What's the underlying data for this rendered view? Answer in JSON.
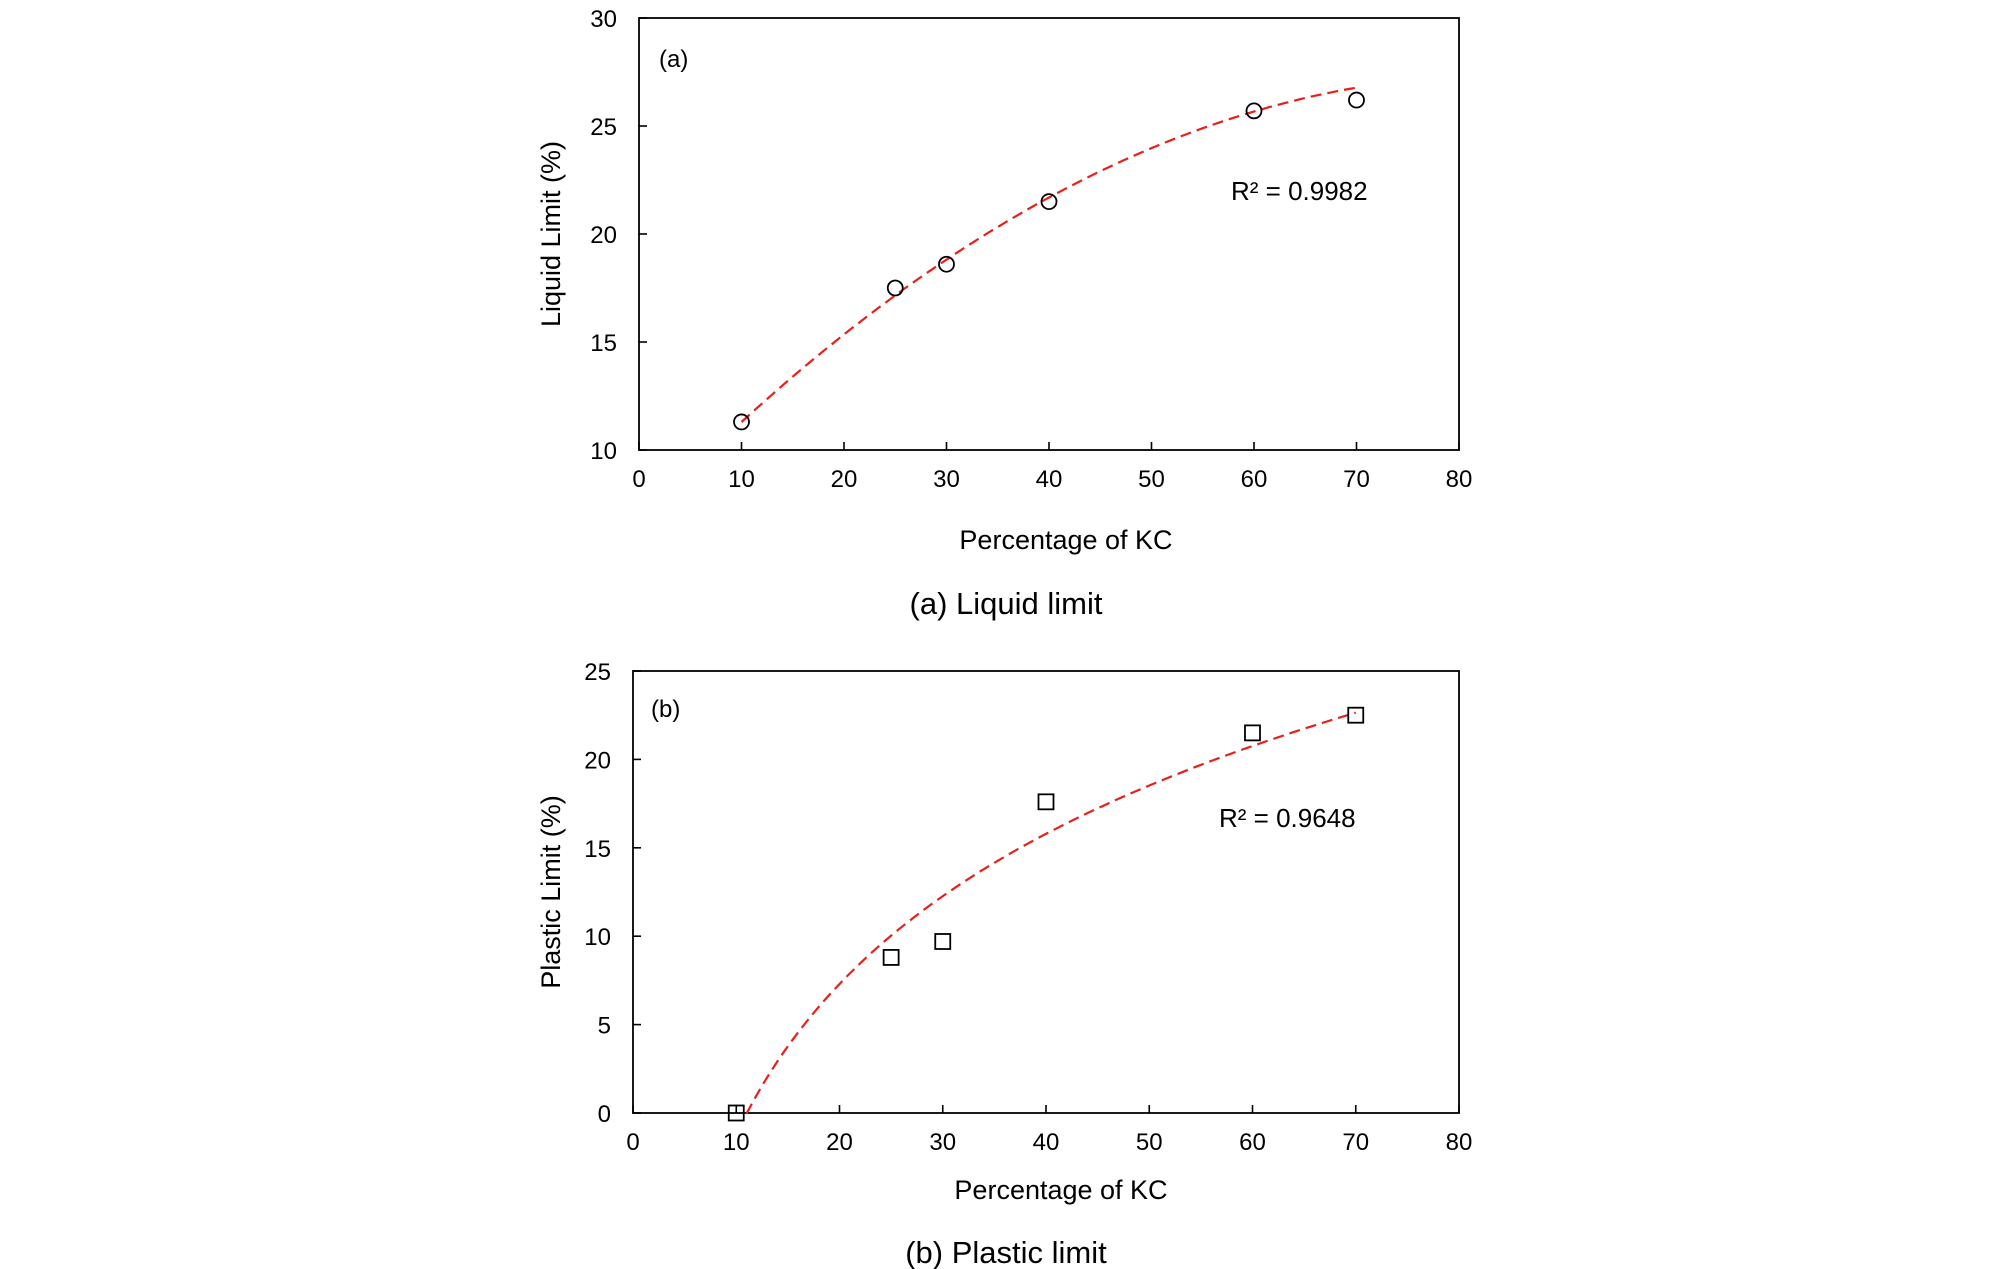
{
  "figure": {
    "caption_a": "(a)  Liquid  limit",
    "caption_b": "(b)  Plastic  limit"
  },
  "chart_data": [
    {
      "type": "scatter",
      "panel_label": "(a)",
      "xlabel": "Percentage of KC",
      "ylabel": "Liquid Limit (%)",
      "xlim": [
        0,
        80
      ],
      "ylim": [
        10,
        30
      ],
      "x_ticks": [
        0,
        10,
        20,
        30,
        40,
        50,
        60,
        70,
        80
      ],
      "y_ticks": [
        10,
        15,
        20,
        25,
        30
      ],
      "x_tick_labels": [
        "0",
        "10",
        "20",
        "30",
        "40",
        "50",
        "60",
        "70",
        "80"
      ],
      "y_tick_labels": [
        "10",
        "15",
        "20",
        "25",
        "30"
      ],
      "marker": "circle",
      "points": [
        {
          "x": 10,
          "y": 11.3
        },
        {
          "x": 25,
          "y": 17.5
        },
        {
          "x": 30,
          "y": 18.6
        },
        {
          "x": 40,
          "y": 21.5
        },
        {
          "x": 60,
          "y": 25.7
        },
        {
          "x": 70,
          "y": 26.2
        }
      ],
      "trendline": {
        "kind": "polynomial-2",
        "x_range": [
          10,
          70
        ],
        "coefficients": [
          6.65,
          0.494,
          -0.00295
        ],
        "color": "#e8201c",
        "style": "dashed"
      },
      "annotation": "R² = 0.9982",
      "grid": false
    },
    {
      "type": "scatter",
      "panel_label": "(b)",
      "xlabel": "Percentage of KC",
      "ylabel": "Plastic Limit (%)",
      "xlim": [
        0,
        80
      ],
      "ylim": [
        0,
        25
      ],
      "x_ticks": [
        0,
        10,
        20,
        30,
        40,
        50,
        60,
        70,
        80
      ],
      "y_ticks": [
        0,
        5,
        10,
        15,
        20,
        25
      ],
      "x_tick_labels": [
        "0",
        "10",
        "20",
        "30",
        "40",
        "50",
        "60",
        "70",
        "80"
      ],
      "y_tick_labels": [
        "0",
        "5",
        "10",
        "15",
        "20",
        "25"
      ],
      "marker": "square",
      "points": [
        {
          "x": 10,
          "y": 0
        },
        {
          "x": 25,
          "y": 8.8
        },
        {
          "x": 30,
          "y": 9.7
        },
        {
          "x": 40,
          "y": 17.6
        },
        {
          "x": 60,
          "y": 21.5
        },
        {
          "x": 70,
          "y": 22.5
        }
      ],
      "trendline": {
        "kind": "logarithmic",
        "x_range": [
          11,
          70
        ],
        "a": 12.25,
        "b": -29.4,
        "color": "#e8201c",
        "style": "dashed"
      },
      "annotation": "R² = 0.9648",
      "grid": false
    }
  ]
}
